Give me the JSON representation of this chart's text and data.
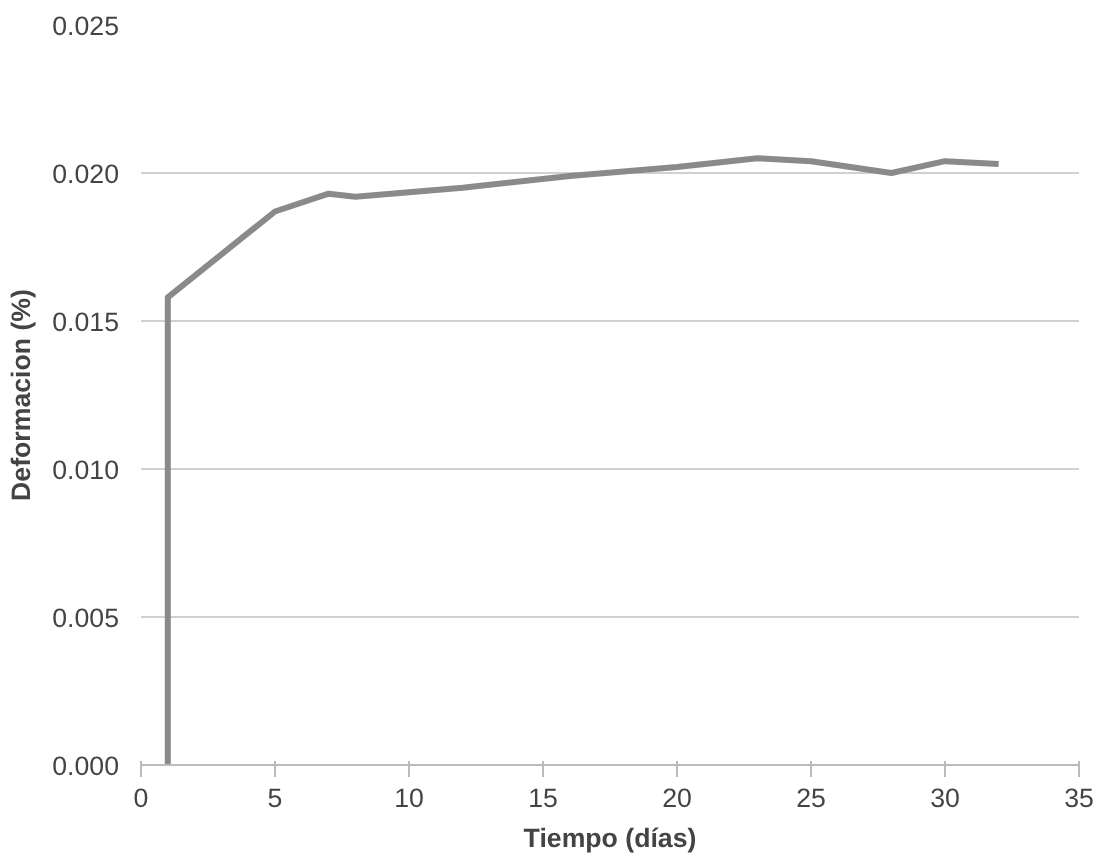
{
  "chart_data": {
    "type": "line",
    "xlabel": "Tiempo (días)",
    "ylabel": "Deformacion (%)",
    "x": [
      1,
      1,
      5,
      7,
      8,
      12,
      16,
      20,
      23,
      25,
      28,
      30,
      32
    ],
    "series": [
      {
        "color": "#8a8a8a",
        "values": [
          0.0,
          0.0158,
          0.0187,
          0.0193,
          0.0192,
          0.0195,
          0.0199,
          0.0202,
          0.0205,
          0.0204,
          0.02,
          0.0204,
          0.0203
        ]
      }
    ],
    "xlim": [
      0,
      35
    ],
    "xticks": [
      0,
      5,
      10,
      15,
      20,
      25,
      30,
      35
    ],
    "ylim": [
      0,
      0.025
    ],
    "yticks": [
      {
        "value": 0,
        "label": "0.000"
      },
      {
        "value": 0.005,
        "label": "0.005"
      },
      {
        "value": 0.01,
        "label": "0.010"
      },
      {
        "value": 0.015,
        "label": "0.015"
      },
      {
        "value": 0.02,
        "label": "0.020"
      },
      {
        "value": 0.025,
        "label": "0.025"
      }
    ],
    "grid": "y",
    "marker": "none",
    "line_style": "solid"
  }
}
